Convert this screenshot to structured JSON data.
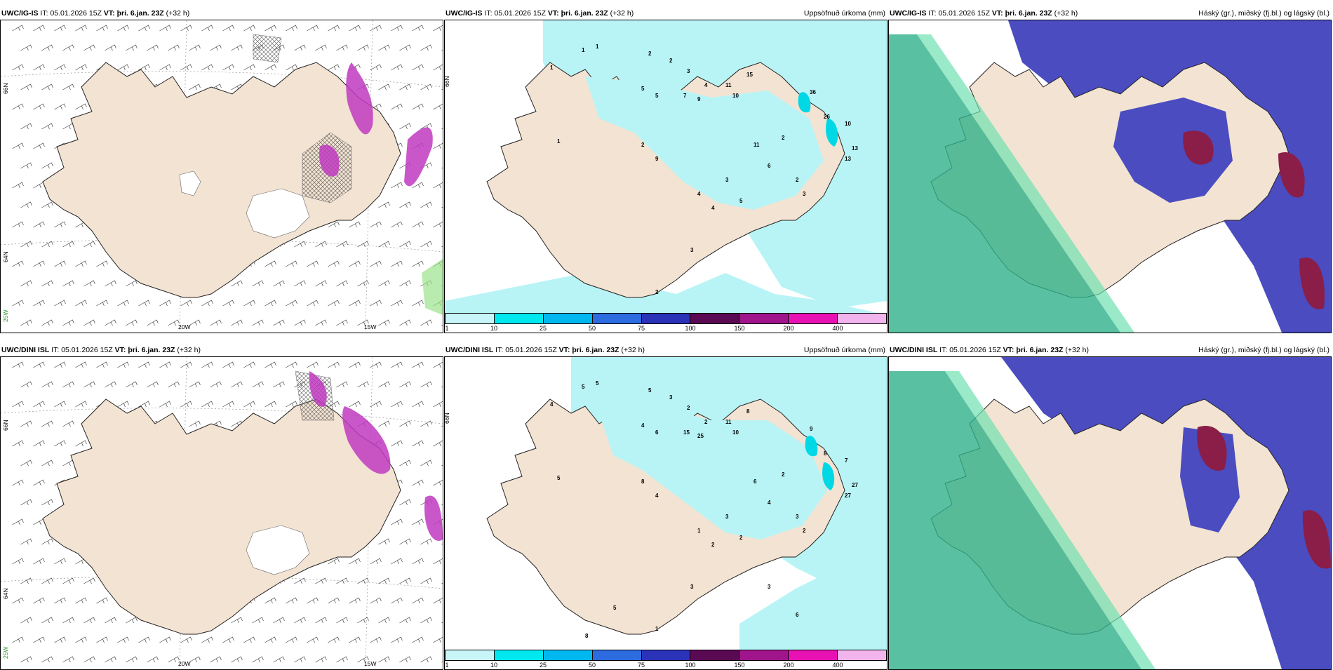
{
  "panels": [
    {
      "id": "p1",
      "model": "UWC/IG-IS",
      "it_label": "IT:",
      "it": "05.01.2026 15Z",
      "vt_label": "VT:",
      "vt": "þri. 6.jan. 23Z",
      "lead": "(+32 h)",
      "right": "",
      "type": "wind"
    },
    {
      "id": "p2",
      "model": "UWC/IG-IS",
      "it_label": "IT:",
      "it": "05.01.2026 15Z",
      "vt_label": "VT:",
      "vt": "þri. 6.jan. 23Z",
      "lead": "(+32 h)",
      "right": "Uppsöfnuð úrkoma (mm)",
      "type": "precip"
    },
    {
      "id": "p3",
      "model": "UWC/IG-IS",
      "it_label": "IT:",
      "it": "05.01.2026 15Z",
      "vt_label": "VT:",
      "vt": "þri. 6.jan. 23Z",
      "lead": "(+32 h)",
      "right": "Háský (gr.), miðský (fj.bl.) og lágský (bl.)",
      "type": "cloud"
    },
    {
      "id": "p4",
      "model": "UWC/DINI ISL",
      "it_label": "IT:",
      "it": "05.01.2026 15Z",
      "vt_label": "VT:",
      "vt": "þri. 6.jan. 23Z",
      "lead": "(+32 h)",
      "right": "",
      "type": "wind"
    },
    {
      "id": "p5",
      "model": "UWC/DINI ISL",
      "it_label": "IT:",
      "it": "05.01.2026 15Z",
      "vt_label": "VT:",
      "vt": "þri. 6.jan. 23Z",
      "lead": "(+32 h)",
      "right": "Uppsöfnuð úrkoma (mm)",
      "type": "precip"
    },
    {
      "id": "p6",
      "model": "UWC/DINI ISL",
      "it_label": "IT:",
      "it": "05.01.2026 15Z",
      "vt_label": "VT:",
      "vt": "þri. 6.jan. 23Z",
      "lead": "(+32 h)",
      "right": "Háský (gr.), miðský (fj.bl.) og lágský (bl.)",
      "type": "cloud"
    }
  ],
  "axes": {
    "lat_top": "66N",
    "lat_mid": "64N",
    "lat_bottom": "25W",
    "lon_left": "20W",
    "lon_right": "15W"
  },
  "colorbar": {
    "ticks": [
      "1",
      "10",
      "25",
      "50",
      "75",
      "100",
      "150",
      "200",
      "400"
    ],
    "colors": [
      "#c8f5f8",
      "#00e8ef",
      "#00b8ef",
      "#2c6be0",
      "#2a32b8",
      "#5a0a52",
      "#a0158c",
      "#e812b4",
      "#f2b4ec"
    ]
  },
  "colors": {
    "land": "#f3e3d3",
    "precip_light": "#b8f4f6",
    "high_cloud": "#2fb08a",
    "mid_cloud": "#4a4cc0",
    "low_cloud": "#8a1e48",
    "snow_magenta": "#c03ac0"
  },
  "numbers_top": [
    "1",
    "1",
    "2",
    "2",
    "3",
    "4",
    "5",
    "5",
    "7",
    "9",
    "11",
    "10",
    "15",
    "36",
    "26",
    "10",
    "13",
    "13",
    "2",
    "9",
    "1",
    "1",
    "11",
    "6",
    "2",
    "2",
    "3",
    "4",
    "4",
    "3",
    "5",
    "3",
    "2"
  ],
  "numbers_bottom": [
    "5",
    "5",
    "5",
    "3",
    "2",
    "2",
    "4",
    "6",
    "15",
    "25",
    "11",
    "10",
    "8",
    "9",
    "8",
    "7",
    "27",
    "27",
    "8",
    "4",
    "4",
    "5",
    "6",
    "4",
    "2",
    "3",
    "2",
    "1",
    "2",
    "3",
    "2",
    "3",
    "1",
    "8",
    "5",
    "3",
    "6"
  ]
}
